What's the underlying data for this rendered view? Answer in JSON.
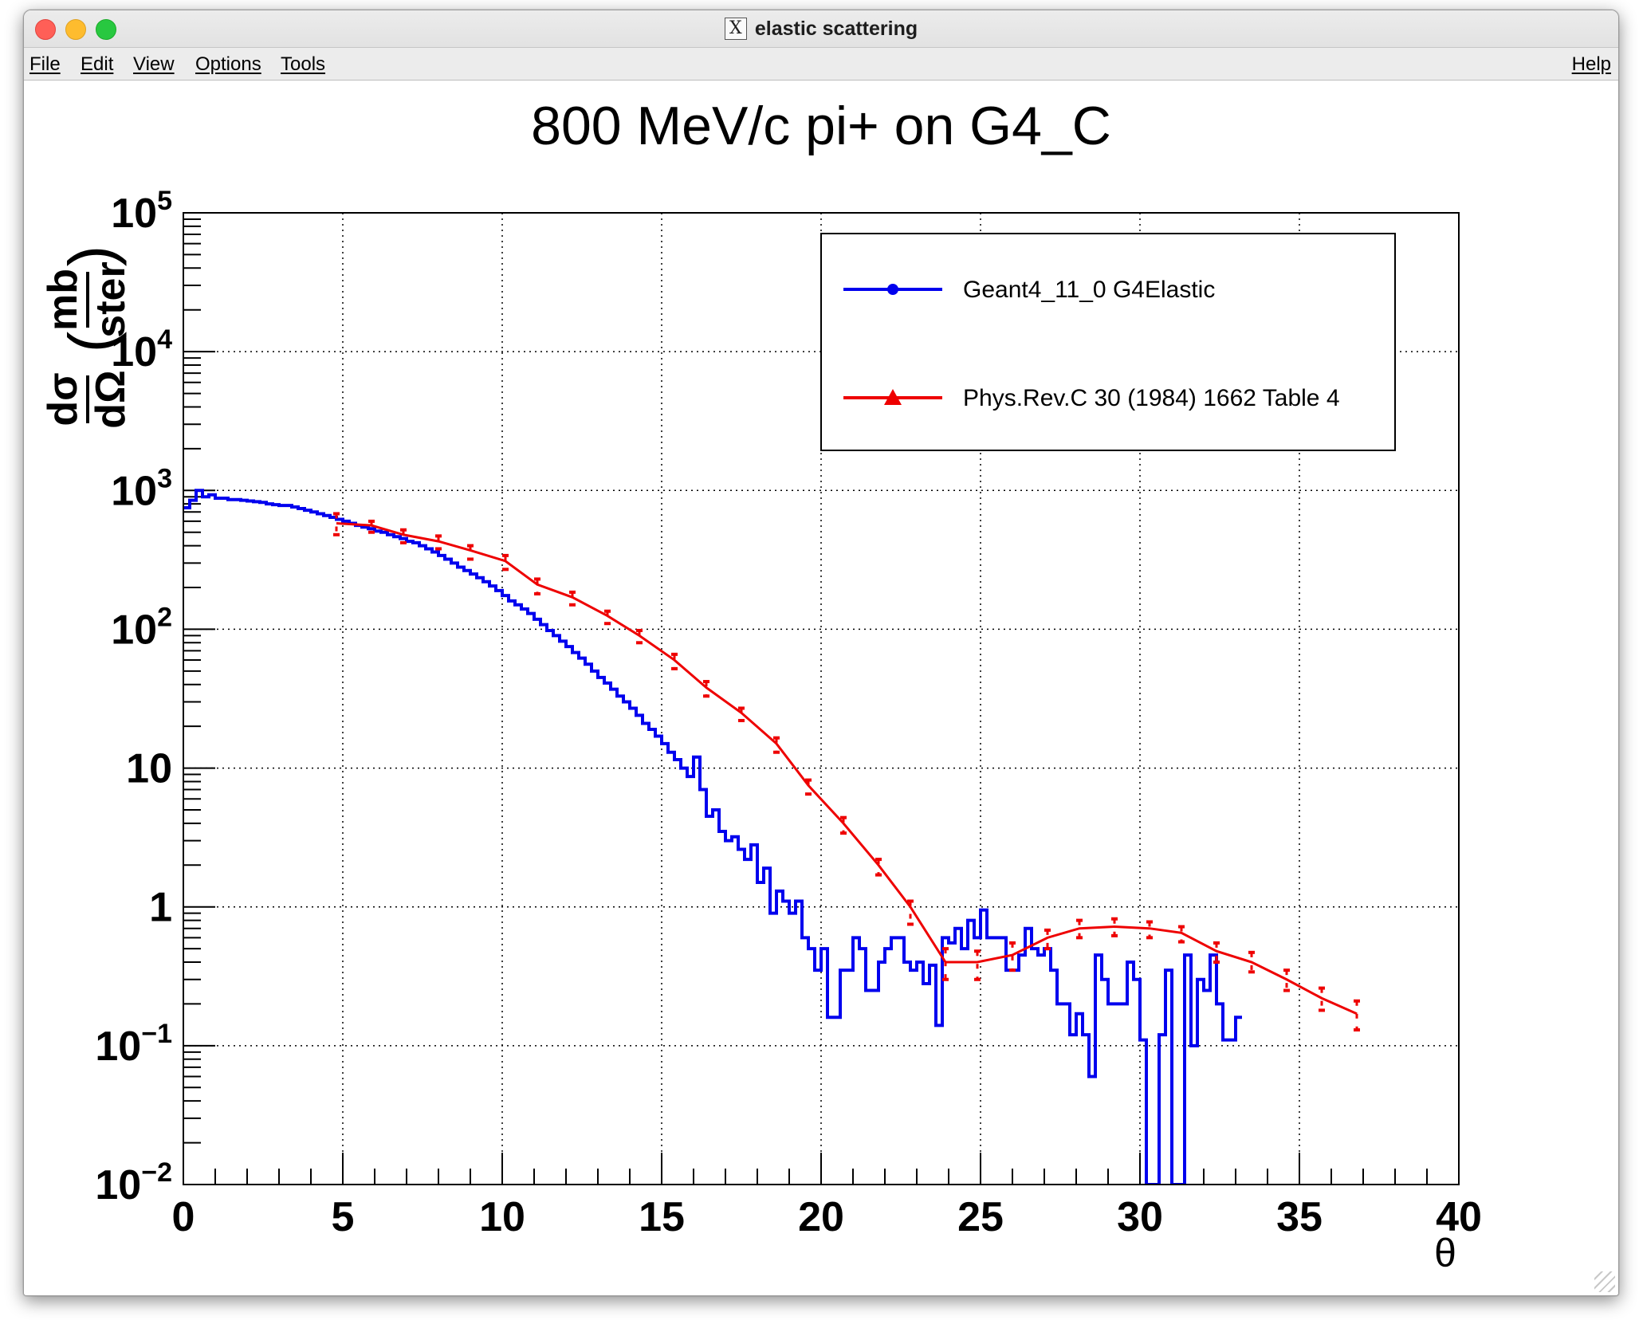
{
  "window": {
    "title": "elastic scattering",
    "icon": "x11-icon"
  },
  "menu": {
    "file": "File",
    "edit": "Edit",
    "view": "View",
    "options": "Options",
    "tools": "Tools",
    "help": "Help"
  },
  "chart_data": {
    "type": "line",
    "title": "800 MeV/c pi+ on G4_C",
    "xlabel": "θ",
    "ylabel": "dσ/dΩ (mb/ster)",
    "ylabel_parts": {
      "num": "dσ",
      "den": "dΩ",
      "unit_num": "mb",
      "unit_den": "ster"
    },
    "xlim": [
      0,
      40
    ],
    "ylim": [
      0.01,
      100000
    ],
    "yscale": "log",
    "grid": true,
    "legend_position": "top-right",
    "x_ticks": [
      {
        "value": 0,
        "label": "0"
      },
      {
        "value": 5,
        "label": "5"
      },
      {
        "value": 10,
        "label": "10"
      },
      {
        "value": 15,
        "label": "15"
      },
      {
        "value": 20,
        "label": "20"
      },
      {
        "value": 25,
        "label": "25"
      },
      {
        "value": 30,
        "label": "30"
      },
      {
        "value": 35,
        "label": "35"
      },
      {
        "value": 40,
        "label": "40"
      }
    ],
    "y_ticks": [
      {
        "value": 0.01,
        "base": "10",
        "exp": "−2"
      },
      {
        "value": 0.1,
        "base": "10",
        "exp": "−1"
      },
      {
        "value": 1,
        "base": "1",
        "exp": ""
      },
      {
        "value": 10,
        "base": "10",
        "exp": ""
      },
      {
        "value": 100,
        "base": "10",
        "exp": "2"
      },
      {
        "value": 1000,
        "base": "10",
        "exp": "3"
      },
      {
        "value": 10000,
        "base": "10",
        "exp": "4"
      },
      {
        "value": 100000,
        "base": "10",
        "exp": "5"
      }
    ],
    "series": [
      {
        "name": "Geant4_11_0 G4Elastic",
        "style": "histogram",
        "color": "#0000ee",
        "marker": "circle",
        "bin_width": 0.2,
        "x_start": 0,
        "values": [
          750,
          850,
          1000,
          900,
          930,
          880,
          880,
          860,
          860,
          850,
          840,
          830,
          820,
          800,
          790,
          780,
          780,
          760,
          740,
          720,
          700,
          680,
          660,
          640,
          620,
          600,
          580,
          560,
          545,
          530,
          510,
          500,
          480,
          465,
          450,
          430,
          420,
          400,
          380,
          360,
          340,
          320,
          300,
          280,
          265,
          250,
          235,
          220,
          205,
          190,
          175,
          160,
          150,
          140,
          130,
          118,
          108,
          98,
          90,
          82,
          75,
          68,
          62,
          56,
          50,
          45,
          41,
          37,
          33,
          30,
          27,
          24,
          21,
          19,
          17,
          15,
          13,
          11.5,
          10,
          8.7,
          12,
          7,
          4.5,
          5,
          3.5,
          3,
          3.2,
          2.6,
          2.2,
          2.8,
          1.5,
          1.9,
          0.9,
          1.3,
          1.1,
          0.9,
          1.1,
          0.6,
          0.5,
          0.35,
          0.5,
          0.16,
          0.16,
          0.35,
          0.35,
          0.6,
          0.5,
          0.25,
          0.25,
          0.4,
          0.5,
          0.6,
          0.6,
          0.4,
          0.35,
          0.4,
          0.28,
          0.38,
          0.14,
          0.6,
          0.55,
          0.7,
          0.5,
          0.8,
          0.6,
          0.95,
          0.6,
          0.6,
          0.6,
          0.35,
          0.35,
          0.45,
          0.7,
          0.5,
          0.45,
          0.5,
          0.35,
          0.2,
          0.2,
          0.12,
          0.17,
          0.12,
          0.06,
          0.45,
          0.3,
          0.2,
          0.2,
          0.2,
          0.4,
          0.3,
          0.11,
          0.01,
          0.01,
          0.12,
          0.35,
          0.01,
          0.01,
          0.45,
          0.1,
          0.3,
          0.25,
          0.45,
          0.2,
          0.11,
          0.11,
          0.16
        ]
      },
      {
        "name": "Phys.Rev.C 30 (1984) 1662 Table 4",
        "style": "line+errorbars",
        "color": "#ee0000",
        "marker": "triangle",
        "points": [
          {
            "x": 4.8,
            "y": 580,
            "lo": 480,
            "hi": 680
          },
          {
            "x": 5.9,
            "y": 560,
            "lo": 500,
            "hi": 600
          },
          {
            "x": 6.9,
            "y": 480,
            "lo": 420,
            "hi": 520
          },
          {
            "x": 8.0,
            "y": 430,
            "lo": 380,
            "hi": 470
          },
          {
            "x": 9.0,
            "y": 370,
            "lo": 320,
            "hi": 400
          },
          {
            "x": 10.1,
            "y": 310,
            "lo": 270,
            "hi": 340
          },
          {
            "x": 11.1,
            "y": 210,
            "lo": 180,
            "hi": 230
          },
          {
            "x": 12.2,
            "y": 170,
            "lo": 150,
            "hi": 185
          },
          {
            "x": 13.3,
            "y": 125,
            "lo": 110,
            "hi": 135
          },
          {
            "x": 14.3,
            "y": 90,
            "lo": 80,
            "hi": 98
          },
          {
            "x": 15.4,
            "y": 60,
            "lo": 52,
            "hi": 66
          },
          {
            "x": 16.4,
            "y": 38,
            "lo": 33,
            "hi": 42
          },
          {
            "x": 17.5,
            "y": 25,
            "lo": 22,
            "hi": 27
          },
          {
            "x": 18.6,
            "y": 15,
            "lo": 13,
            "hi": 16.5
          },
          {
            "x": 19.6,
            "y": 7.5,
            "lo": 6.5,
            "hi": 8.2
          },
          {
            "x": 20.7,
            "y": 4,
            "lo": 3.4,
            "hi": 4.4
          },
          {
            "x": 21.8,
            "y": 2,
            "lo": 1.7,
            "hi": 2.2
          },
          {
            "x": 22.8,
            "y": 1,
            "lo": 0.75,
            "hi": 1.1
          },
          {
            "x": 23.9,
            "y": 0.4,
            "lo": 0.3,
            "hi": 0.5
          },
          {
            "x": 24.9,
            "y": 0.4,
            "lo": 0.3,
            "hi": 0.48
          },
          {
            "x": 26.0,
            "y": 0.45,
            "lo": 0.35,
            "hi": 0.55
          },
          {
            "x": 27.1,
            "y": 0.6,
            "lo": 0.5,
            "hi": 0.68
          },
          {
            "x": 28.1,
            "y": 0.7,
            "lo": 0.6,
            "hi": 0.8
          },
          {
            "x": 29.2,
            "y": 0.72,
            "lo": 0.62,
            "hi": 0.82
          },
          {
            "x": 30.3,
            "y": 0.7,
            "lo": 0.6,
            "hi": 0.78
          },
          {
            "x": 31.3,
            "y": 0.65,
            "lo": 0.56,
            "hi": 0.72
          },
          {
            "x": 32.4,
            "y": 0.48,
            "lo": 0.4,
            "hi": 0.55
          },
          {
            "x": 33.5,
            "y": 0.4,
            "lo": 0.34,
            "hi": 0.47
          },
          {
            "x": 34.6,
            "y": 0.3,
            "lo": 0.25,
            "hi": 0.35
          },
          {
            "x": 35.7,
            "y": 0.22,
            "lo": 0.18,
            "hi": 0.26
          },
          {
            "x": 36.8,
            "y": 0.17,
            "lo": 0.13,
            "hi": 0.21
          }
        ]
      }
    ]
  }
}
